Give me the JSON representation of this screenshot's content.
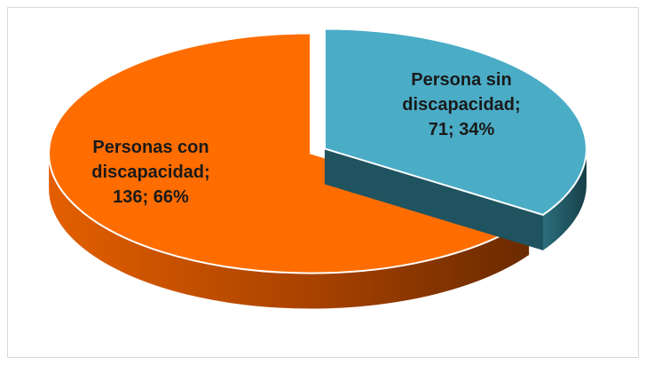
{
  "chart_data": {
    "type": "pie",
    "style": "3d-exploded",
    "title": "",
    "slices": [
      {
        "name": "Persona sin discapacidad",
        "value": 71,
        "percent": 34,
        "color": "#4BACC6",
        "side_color": "#1F5360",
        "label_lines": [
          "Persona sin",
          "discapacidad;",
          "71; 34%"
        ]
      },
      {
        "name": "Personas con discapacidad",
        "value": 136,
        "percent": 66,
        "color": "#FF6D00",
        "side_color": "#B34A00",
        "label_lines": [
          "Personas con",
          "discapacidad;",
          "136; 66%"
        ]
      }
    ],
    "legend": false
  }
}
